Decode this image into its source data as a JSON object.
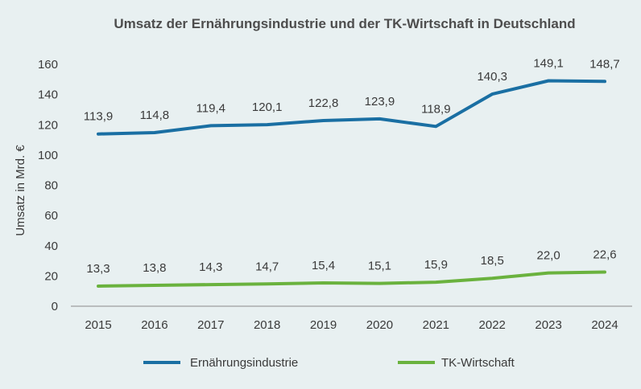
{
  "chart_data": {
    "type": "line",
    "title": "Umsatz der Ernährungsindustrie und der TK-Wirtschaft in Deutschland",
    "xlabel": "",
    "ylabel": "Umsatz in Mrd. €",
    "ylim": [
      0,
      160
    ],
    "yticks": [
      "0",
      "20",
      "40",
      "60",
      "80",
      "100",
      "120",
      "140",
      "160"
    ],
    "categories": [
      "2015",
      "2016",
      "2017",
      "2018",
      "2019",
      "2020",
      "2021",
      "2022",
      "2023",
      "2024"
    ],
    "grid": false,
    "legend_position": "bottom",
    "series": [
      {
        "name": "Ernährungsindustrie",
        "color": "#1a6fa3",
        "values": [
          113.9,
          114.8,
          119.4,
          120.1,
          122.8,
          123.9,
          118.9,
          140.3,
          149.1,
          148.7
        ],
        "labels": [
          "113,9",
          "114,8",
          "119,4",
          "120,1",
          "122,8",
          "123,9",
          "118,9",
          "140,3",
          "149,1",
          "148,7"
        ]
      },
      {
        "name": "TK-Wirtschaft",
        "color": "#6ab23e",
        "values": [
          13.3,
          13.8,
          14.3,
          14.7,
          15.4,
          15.1,
          15.9,
          18.5,
          22.0,
          22.6
        ],
        "labels": [
          "13,3",
          "13,8",
          "14,3",
          "14,7",
          "15,4",
          "15,1",
          "15,9",
          "18,5",
          "22,0",
          "22,6"
        ]
      }
    ]
  }
}
